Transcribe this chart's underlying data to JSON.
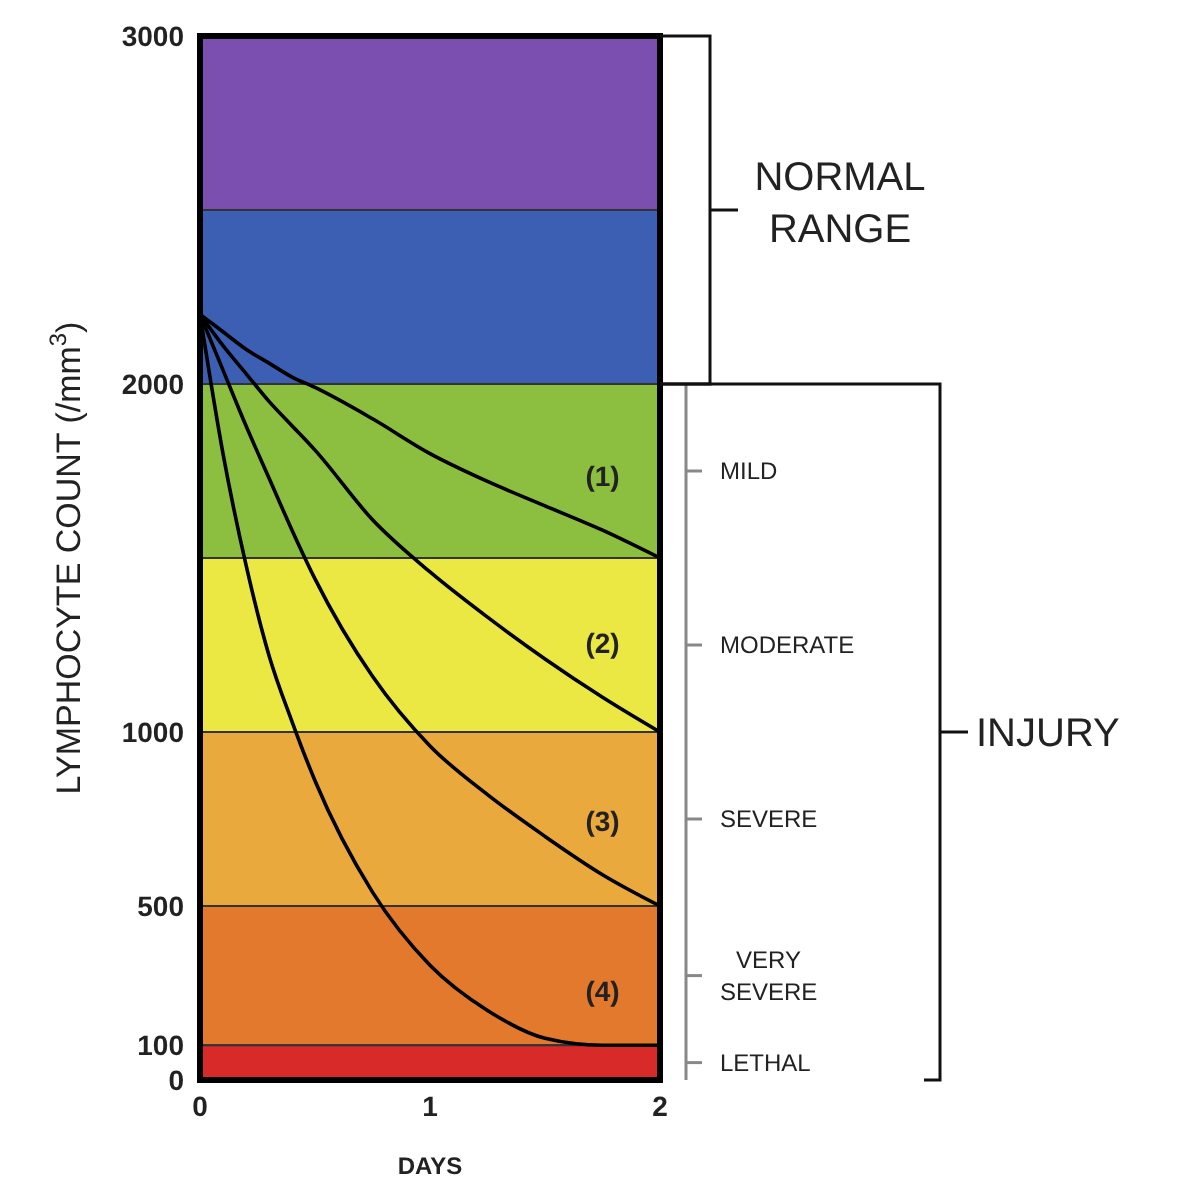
{
  "chart_data": {
    "type": "line",
    "xlabel": "DAYS",
    "ylabel": "LYMPHOCYTE COUNT (/mm$^{3}$)",
    "x": [
      0,
      0.1,
      0.2,
      0.3,
      0.4,
      0.5,
      0.75,
      1,
      1.25,
      1.5,
      1.75,
      2
    ],
    "series": [
      {
        "color": "#000000",
        "values": [
          2200,
          2150,
          2100,
          2060,
          2020,
          1990,
          1900,
          1800,
          1720,
          1650,
          1580,
          1500
        ]
      },
      {
        "color": "#000000",
        "values": [
          2200,
          2110,
          2030,
          1950,
          1880,
          1810,
          1610,
          1460,
          1330,
          1210,
          1100,
          1000
        ]
      },
      {
        "color": "#000000",
        "values": [
          2200,
          2040,
          1880,
          1730,
          1580,
          1440,
          1160,
          960,
          820,
          700,
          590,
          500
        ]
      },
      {
        "color": "#000000",
        "values": [
          2200,
          1800,
          1480,
          1220,
          1030,
          860,
          540,
          330,
          200,
          120,
          100,
          100
        ]
      }
    ],
    "xlim": [
      0,
      2
    ],
    "xticks": [
      0,
      1,
      2
    ],
    "ylim": [
      0,
      3000
    ],
    "yticks": [
      0,
      100,
      500,
      1000,
      2000,
      3000
    ],
    "marker": "none",
    "line_style": "solid",
    "bands": [
      {
        "axis": "y",
        "from": 2500,
        "to": 3000,
        "color": "#7b4fb0",
        "label": null
      },
      {
        "axis": "y",
        "from": 2000,
        "to": 2500,
        "color": "#3d5fb3",
        "label": null
      },
      {
        "axis": "y",
        "from": 1500,
        "to": 2000,
        "color": "#8cbf3f",
        "label": "MILD"
      },
      {
        "axis": "y",
        "from": 1000,
        "to": 1500,
        "color": "#ece843",
        "label": "MODERATE"
      },
      {
        "axis": "y",
        "from": 500,
        "to": 1000,
        "color": "#e9a93c",
        "label": "SEVERE"
      },
      {
        "axis": "y",
        "from": 100,
        "to": 500,
        "color": "#e2792c",
        "label": "VERY SEVERE"
      },
      {
        "axis": "y",
        "from": 0,
        "to": 100,
        "color": "#d92a2a",
        "label": "LETHAL"
      }
    ],
    "annotations": [
      "(1)",
      "(2)",
      "(3)",
      "(4)",
      "NORMAL RANGE",
      "INJURY"
    ]
  }
}
